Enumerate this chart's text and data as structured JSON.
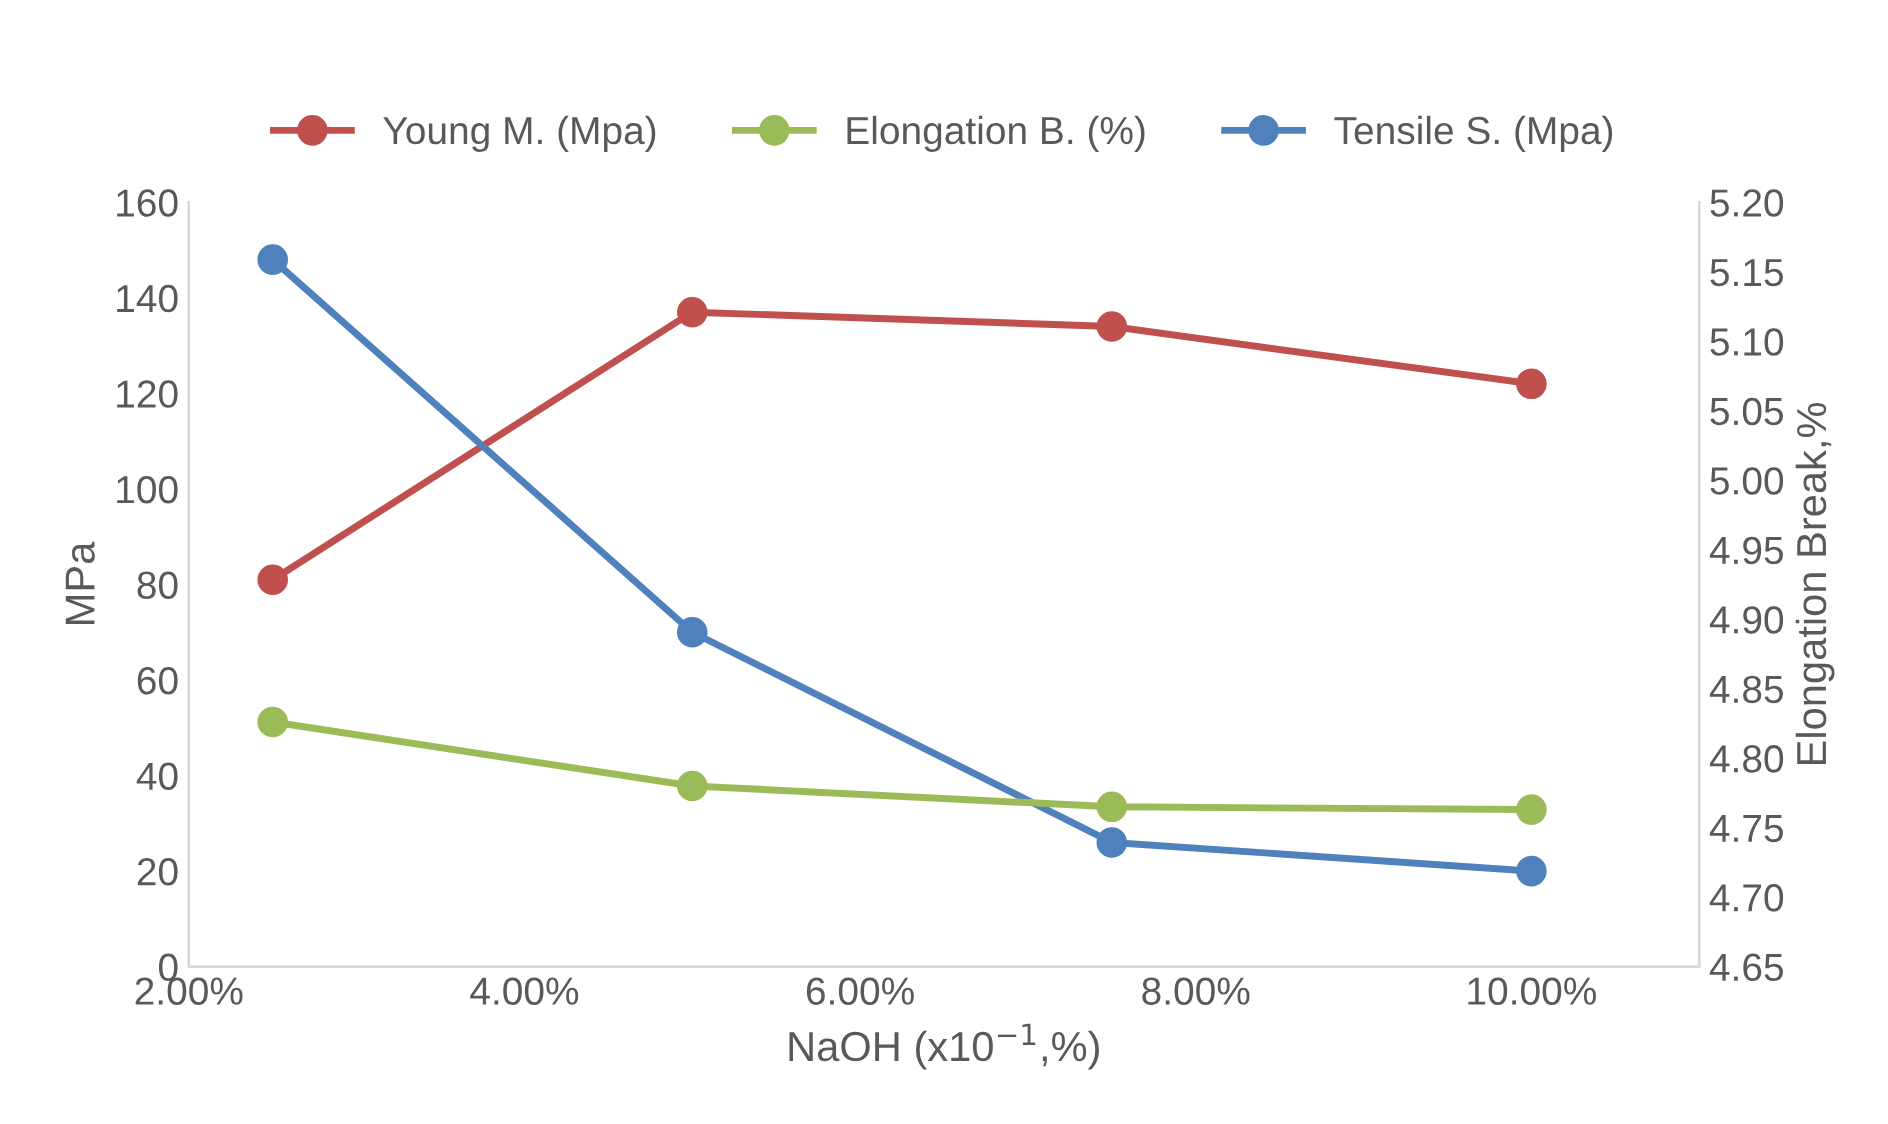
{
  "chart_data": {
    "type": "line",
    "xlabel": "NaOH (x10$^{−1}$,%)",
    "ylabel": "MPa",
    "y2label": "Elongation Break,%",
    "x": [
      2.5,
      5,
      7.5,
      10
    ],
    "series": [
      {
        "name": "Young M. (Mpa)",
        "color": "#c0504d",
        "values": [
          81,
          137,
          134,
          122
        ]
      },
      {
        "name": "Elongation B. (%)",
        "color": "#9bbb59",
        "values": [
          4.826,
          4.78,
          4.765,
          4.763
        ],
        "axis": "y2"
      },
      {
        "name": "Tensile S. (Mpa)",
        "color": "#4f81bd",
        "values": [
          148,
          70,
          26,
          20
        ]
      }
    ],
    "xlim": [
      2,
      11
    ],
    "xticks": [
      {
        "value": 2,
        "label": "2.00%"
      },
      {
        "value": 4,
        "label": "4.00%"
      },
      {
        "value": 6,
        "label": "6.00%"
      },
      {
        "value": 8,
        "label": "8.00%"
      },
      {
        "value": 10,
        "label": "10.00%"
      }
    ],
    "ylim": [
      0,
      160
    ],
    "yticks": [
      0,
      20,
      40,
      60,
      80,
      100,
      120,
      140,
      160
    ],
    "y2lim": [
      4.65,
      5.2
    ],
    "y2ticks": [
      {
        "value": 4.65,
        "label": "4.65"
      },
      {
        "value": 4.7,
        "label": "4.70"
      },
      {
        "value": 4.75,
        "label": "4.75"
      },
      {
        "value": 4.8,
        "label": "4.80"
      },
      {
        "value": 4.85,
        "label": "4.85"
      },
      {
        "value": 4.9,
        "label": "4.90"
      },
      {
        "value": 4.95,
        "label": "4.95"
      },
      {
        "value": 5.0,
        "label": "5.00"
      },
      {
        "value": 5.05,
        "label": "5.05"
      },
      {
        "value": 5.1,
        "label": "5.10"
      },
      {
        "value": 5.15,
        "label": "5.15"
      },
      {
        "value": 5.2,
        "label": "5.20"
      }
    ],
    "marker": "circle",
    "legend": "top",
    "grid": false
  }
}
